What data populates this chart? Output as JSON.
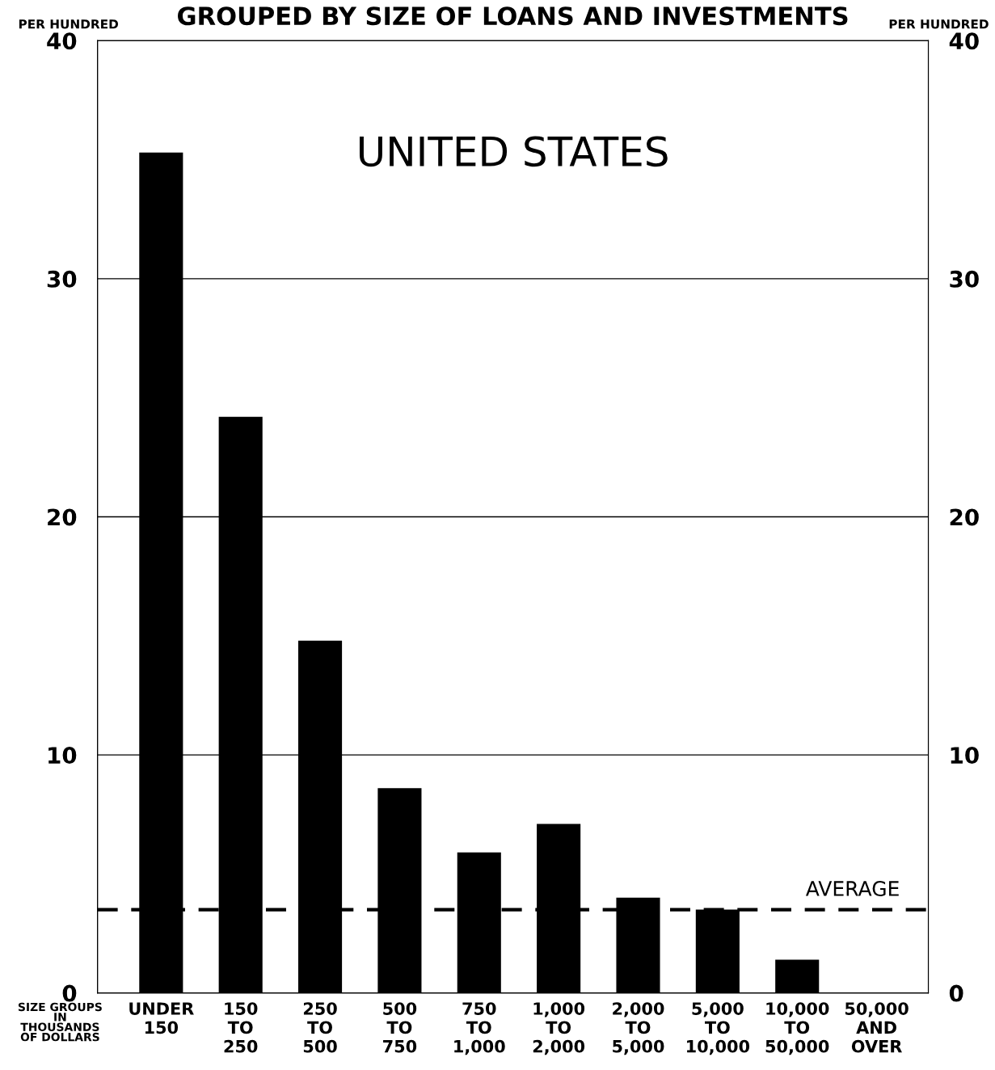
{
  "chart_data": {
    "type": "bar",
    "title": "GROUPED BY SIZE OF LOANS AND INVESTMENTS",
    "ylabel": "PER HUNDRED",
    "y2label": "PER HUNDRED",
    "xlabel": "SIZE GROUPS\nIN\nTHOUSANDS\nOF DOLLARS",
    "categories": [
      "UNDER\n150",
      "150\nTO\n250",
      "250\nTO\n500",
      "500\nTO\n750",
      "750\nTO\n1,000",
      "1,000\nTO\n2,000",
      "2,000\nTO\n5,000",
      "5,000\nTO\n10,000",
      "10,000\nTO\n50,000",
      "50,000\nAND\nOVER"
    ],
    "values": [
      35.3,
      24.2,
      14.8,
      8.6,
      5.9,
      7.1,
      4.0,
      3.5,
      1.4,
      0
    ],
    "color": "#000000",
    "ylim": [
      0,
      40
    ],
    "yticks": [
      0,
      10,
      20,
      30,
      40
    ],
    "y2lim": [
      0,
      40
    ],
    "y2ticks": [
      0,
      10,
      20,
      30,
      40
    ],
    "grid": "y",
    "ref_lines": [
      {
        "axis": "y",
        "value": 3.5,
        "label": "AVERAGE",
        "color": "#000000",
        "line_style": "dashed"
      }
    ],
    "annotations": [
      "UNITED STATES"
    ]
  }
}
